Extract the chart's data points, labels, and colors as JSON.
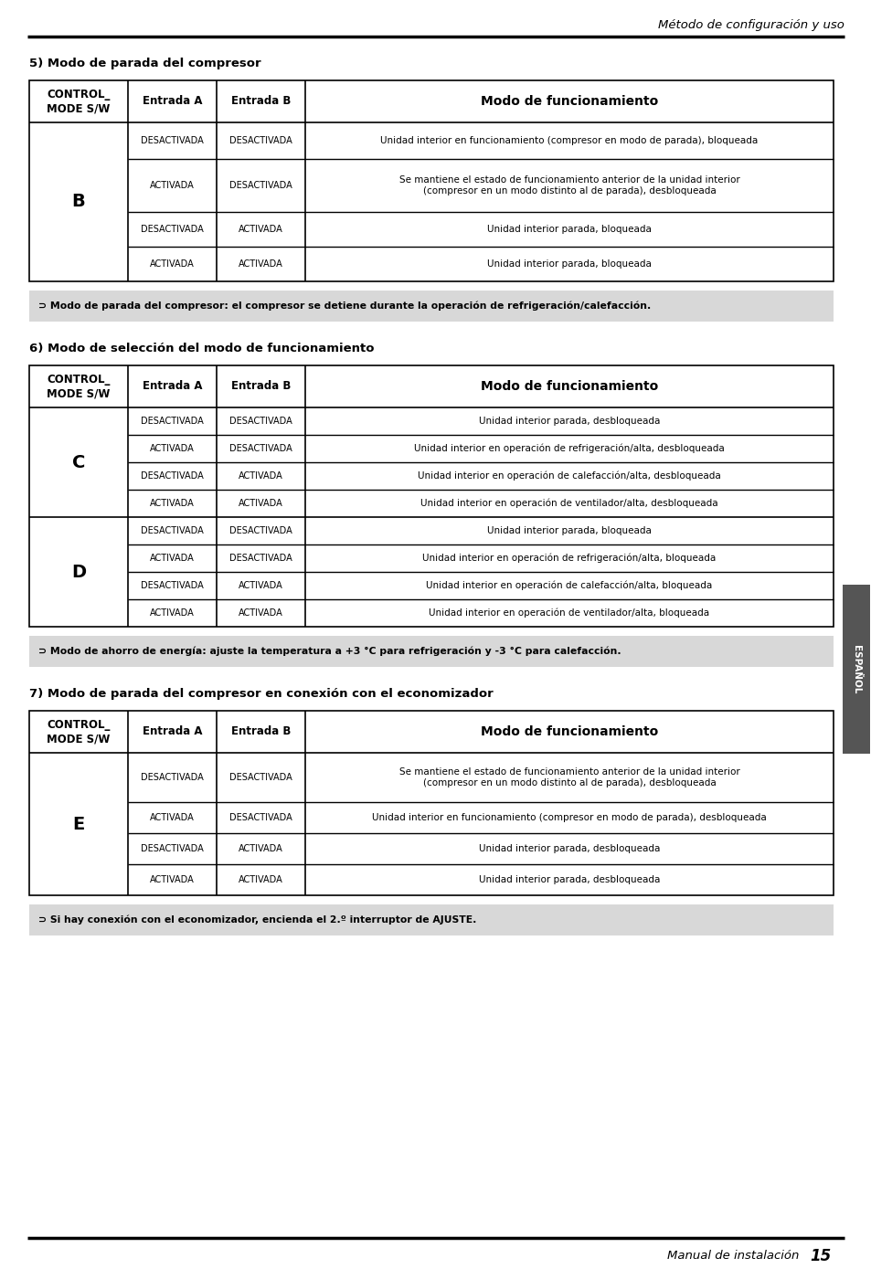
{
  "page_header": "Método de configuración y uso",
  "side_label": "ESPAÑOL",
  "section5_title": "5) Modo de parada del compresor",
  "section6_title": "6) Modo de selección del modo de funcionamiento",
  "section7_title": "7) Modo de parada del compresor en conexión con el economizador",
  "col_headers": [
    "CONTROL_\nMODE S/W",
    "Entrada A",
    "Entrada B",
    "Modo de funcionamiento"
  ],
  "table5_mode": "B",
  "table5_rows": [
    [
      "DESACTIVADA",
      "DESACTIVADA",
      "Unidad interior en funcionamiento (compresor en modo de parada), bloqueada"
    ],
    [
      "ACTIVADA",
      "DESACTIVADA",
      "Se mantiene el estado de funcionamiento anterior de la unidad interior\n(compresor en un modo distinto al de parada), desbloqueada"
    ],
    [
      "DESACTIVADA",
      "ACTIVADA",
      "Unidad interior parada, bloqueada"
    ],
    [
      "ACTIVADA",
      "ACTIVADA",
      "Unidad interior parada, bloqueada"
    ]
  ],
  "note5": "⊃ Modo de parada del compresor: el compresor se detiene durante la operación de refrigeración/calefacción.",
  "table6_rows_C": [
    [
      "DESACTIVADA",
      "DESACTIVADA",
      "Unidad interior parada, desbloqueada"
    ],
    [
      "ACTIVADA",
      "DESACTIVADA",
      "Unidad interior en operación de refrigeración/alta, desbloqueada"
    ],
    [
      "DESACTIVADA",
      "ACTIVADA",
      "Unidad interior en operación de calefacción/alta, desbloqueada"
    ],
    [
      "ACTIVADA",
      "ACTIVADA",
      "Unidad interior en operación de ventilador/alta, desbloqueada"
    ]
  ],
  "table6_rows_D": [
    [
      "DESACTIVADA",
      "DESACTIVADA",
      "Unidad interior parada, bloqueada"
    ],
    [
      "ACTIVADA",
      "DESACTIVADA",
      "Unidad interior en operación de refrigeración/alta, bloqueada"
    ],
    [
      "DESACTIVADA",
      "ACTIVADA",
      "Unidad interior en operación de calefacción/alta, bloqueada"
    ],
    [
      "ACTIVADA",
      "ACTIVADA",
      "Unidad interior en operación de ventilador/alta, bloqueada"
    ]
  ],
  "note6": "⊃ Modo de ahorro de energía: ajuste la temperatura a +3 °C para refrigeración y -3 °C para calefacción.",
  "table7_mode": "E",
  "table7_rows": [
    [
      "DESACTIVADA",
      "DESACTIVADA",
      "Se mantiene el estado de funcionamiento anterior de la unidad interior\n(compresor en un modo distinto al de parada), desbloqueada"
    ],
    [
      "ACTIVADA",
      "DESACTIVADA",
      "Unidad interior en funcionamiento (compresor en modo de parada), desbloqueada"
    ],
    [
      "DESACTIVADA",
      "ACTIVADA",
      "Unidad interior parada, desbloqueada"
    ],
    [
      "ACTIVADA",
      "ACTIVADA",
      "Unidad interior parada, desbloqueada"
    ]
  ],
  "note7": "⊃ Si hay conexión con el economizador, encienda el 2.º interruptor de AJUSTE.",
  "bg_color": "#ffffff",
  "note_bg": "#d8d8d8",
  "side_tab_bg": "#555555",
  "side_tab_color": "#ffffff"
}
